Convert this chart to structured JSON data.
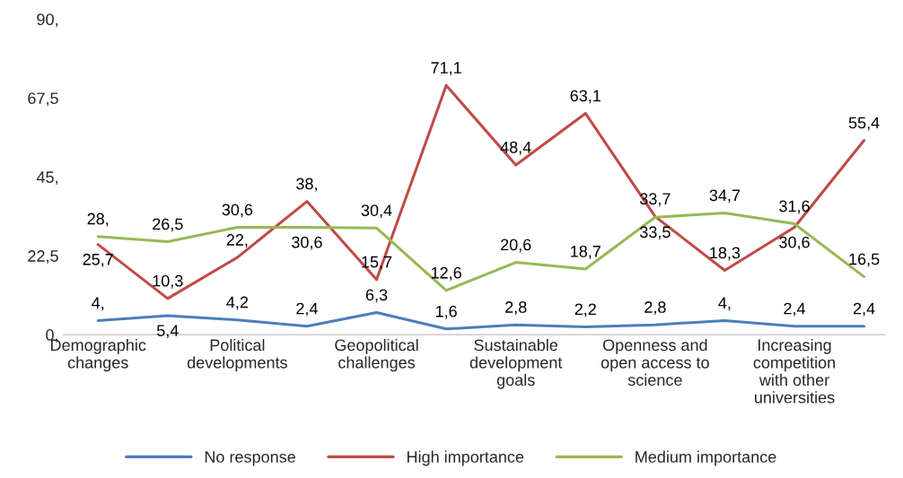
{
  "chart_data": {
    "type": "line",
    "categories": [
      "Demographic changes",
      null,
      "Political developments",
      null,
      "Geopolitical challenges",
      null,
      "Sustainable development goals",
      null,
      "Openness and open access to science",
      null,
      "Increasing competition with other universities",
      null
    ],
    "series": [
      {
        "name": "No response",
        "color": "#4a7ebb",
        "values": [
          4,
          5.4,
          4.2,
          2.4,
          6.3,
          1.6,
          2.8,
          2.2,
          2.8,
          4,
          2.4,
          2.4
        ],
        "value_labels": [
          "4,",
          "5,4",
          "4,2",
          "2,4",
          "6,3",
          "1,6",
          "2,8",
          "2,2",
          "2,8",
          "4,",
          "2,4",
          "2,4"
        ]
      },
      {
        "name": "High importance",
        "color": "#be4b48",
        "values": [
          25.7,
          10.3,
          22,
          38,
          15.7,
          71.1,
          48.4,
          63.1,
          33.7,
          18.3,
          30.6,
          55.4
        ],
        "value_labels": [
          "25,7",
          "10,3",
          "22,",
          "38,",
          "15,7",
          "71,1",
          "48,4",
          "63,1",
          "33,7",
          "18,3",
          "30,6",
          "55,4"
        ]
      },
      {
        "name": "Medium importance",
        "color": "#98b954",
        "values": [
          28,
          26.5,
          30.6,
          30.6,
          30.4,
          12.6,
          20.6,
          18.7,
          33.5,
          34.7,
          31.6,
          16.5
        ],
        "value_labels": [
          "28,",
          "26,5",
          "30,6",
          "30,6",
          "30,4",
          "12,6",
          "20,6",
          "18,7",
          "33,5",
          "34,7",
          "31,6",
          "16,5"
        ]
      }
    ],
    "ylim": [
      0,
      90
    ],
    "yticks": [
      {
        "value": 0,
        "label": "0,"
      },
      {
        "value": 22.5,
        "label": "22,5"
      },
      {
        "value": 45,
        "label": "45,"
      },
      {
        "value": 67.5,
        "label": "67,5"
      },
      {
        "value": 90,
        "label": "90,"
      }
    ],
    "grid": false,
    "legend": "bottom",
    "marker": "none",
    "line_style": "solid"
  }
}
